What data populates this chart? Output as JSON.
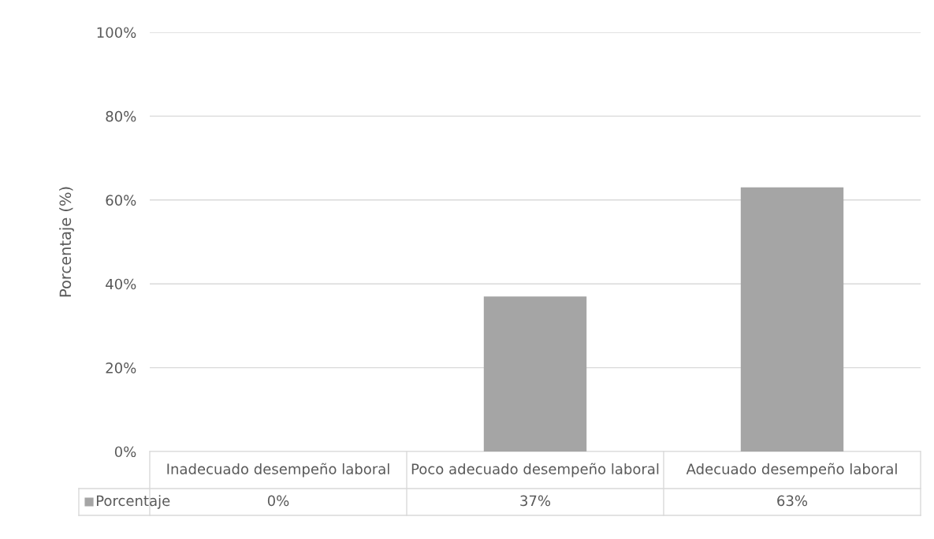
{
  "chart_data": {
    "type": "bar",
    "ylabel": "Porcentaje (%)",
    "categories": [
      "Inadecuado desempeño laboral",
      "Poco adecuado desempeño laboral",
      "Adecuado desempeño laboral"
    ],
    "series": [
      {
        "name": "Porcentaje",
        "color": "#a5a5a5",
        "values": [
          0,
          37,
          63
        ],
        "value_labels": [
          "0%",
          "37%",
          "63%"
        ]
      }
    ],
    "ylim": [
      0,
      100
    ],
    "yticks": [
      {
        "value": 0,
        "label": "0%"
      },
      {
        "value": 20,
        "label": "20%"
      },
      {
        "value": 40,
        "label": "40%"
      },
      {
        "value": 60,
        "label": "60%"
      },
      {
        "value": 80,
        "label": "80%"
      },
      {
        "value": 100,
        "label": "100%"
      }
    ],
    "grid": "y",
    "legend": "bottom"
  }
}
